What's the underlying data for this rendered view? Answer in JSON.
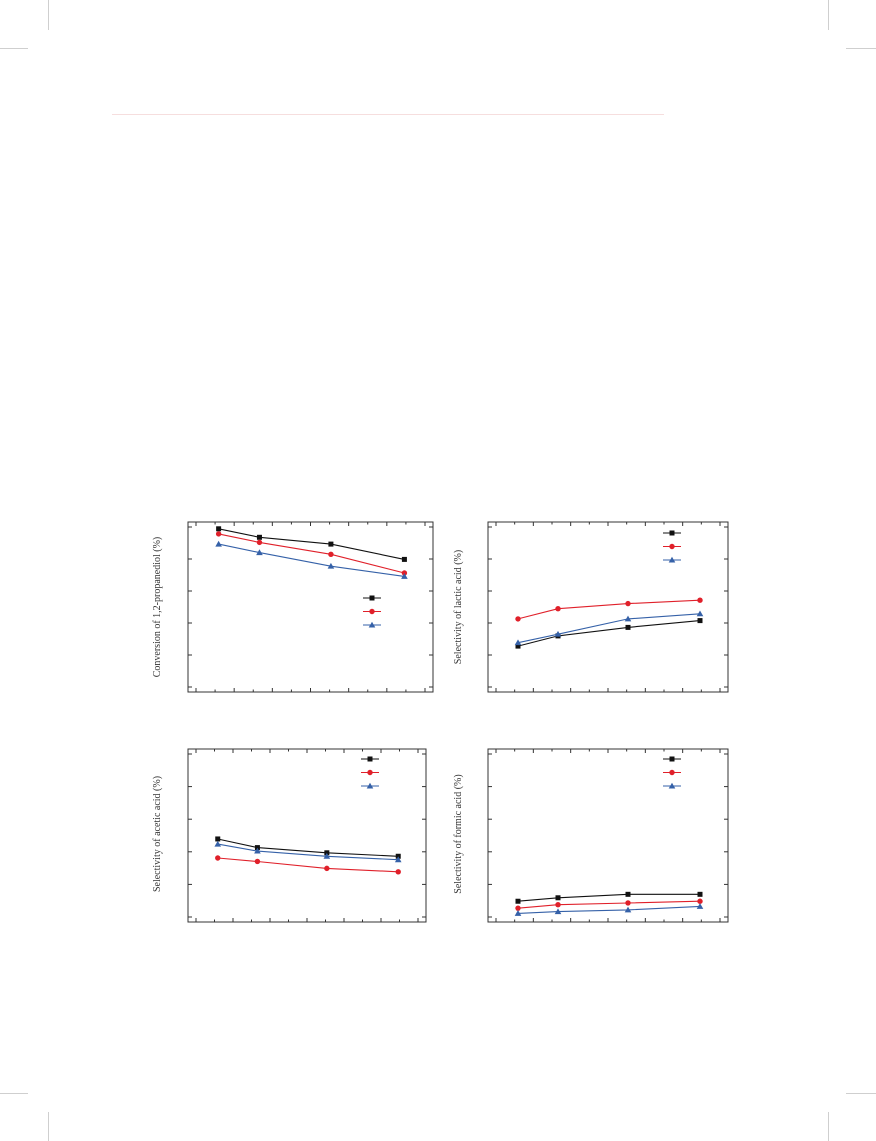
{
  "colors": {
    "frame": "#333333",
    "series_a": "#111111",
    "series_b": "#e0202a",
    "series_c": "#3561a8",
    "header_rule": "#f6dede"
  },
  "chart_data": [
    {
      "type": "line",
      "title": "",
      "xlabel": "",
      "ylabel": "Conversion of 1,2-propanediol (%)",
      "grid": false,
      "legend": "center-right",
      "xlim": [
        0,
        6
      ],
      "ylim": [
        0,
        100
      ],
      "series": [
        {
          "marker": "square",
          "color": "#111111",
          "x": [
            0.75,
            1.75,
            3.5,
            5.3
          ],
          "y": [
            96,
            91,
            87,
            78
          ]
        },
        {
          "marker": "circle",
          "color": "#e0202a",
          "x": [
            0.75,
            1.75,
            3.5,
            5.3
          ],
          "y": [
            93,
            88,
            81,
            70
          ]
        },
        {
          "marker": "triangle",
          "color": "#3561a8",
          "x": [
            0.75,
            1.75,
            3.5,
            5.3
          ],
          "y": [
            87,
            82,
            74,
            68
          ]
        }
      ]
    },
    {
      "type": "line",
      "title": "",
      "xlabel": "",
      "ylabel": "Selectivity of lactic acid (%)",
      "grid": false,
      "legend": "top-right",
      "xlim": [
        0,
        6
      ],
      "ylim": [
        0,
        100
      ],
      "series": [
        {
          "marker": "square",
          "color": "#111111",
          "x": [
            0.75,
            1.75,
            3.5,
            5.3
          ],
          "y": [
            27,
            33,
            38,
            42
          ]
        },
        {
          "marker": "circle",
          "color": "#e0202a",
          "x": [
            0.75,
            1.75,
            3.5,
            5.3
          ],
          "y": [
            43,
            49,
            52,
            54
          ]
        },
        {
          "marker": "triangle",
          "color": "#3561a8",
          "x": [
            0.75,
            1.75,
            3.5,
            5.3
          ],
          "y": [
            29,
            34,
            43,
            46
          ]
        }
      ]
    },
    {
      "type": "line",
      "title": "",
      "xlabel": "",
      "ylabel": "Selectivity of acetic acid (%)",
      "grid": false,
      "legend": "top-right",
      "xlim": [
        0,
        6
      ],
      "ylim": [
        0,
        100
      ],
      "series": [
        {
          "marker": "square",
          "color": "#111111",
          "x": [
            0.75,
            1.75,
            3.5,
            5.3
          ],
          "y": [
            48,
            43,
            40,
            38
          ]
        },
        {
          "marker": "circle",
          "color": "#e0202a",
          "x": [
            0.75,
            1.75,
            3.5,
            5.3
          ],
          "y": [
            37,
            35,
            31,
            29
          ]
        },
        {
          "marker": "triangle",
          "color": "#3561a8",
          "x": [
            0.75,
            1.75,
            3.5,
            5.3
          ],
          "y": [
            45,
            41,
            38,
            36
          ]
        }
      ]
    },
    {
      "type": "line",
      "title": "",
      "xlabel": "",
      "ylabel": "Selectivity of formic acid (%)",
      "grid": false,
      "legend": "top-right",
      "xlim": [
        0,
        6
      ],
      "ylim": [
        0,
        100
      ],
      "series": [
        {
          "marker": "square",
          "color": "#111111",
          "x": [
            0.75,
            1.75,
            3.5,
            5.3
          ],
          "y": [
            12,
            14,
            16,
            16
          ]
        },
        {
          "marker": "circle",
          "color": "#e0202a",
          "x": [
            0.75,
            1.75,
            3.5,
            5.3
          ],
          "y": [
            8,
            10,
            11,
            12
          ]
        },
        {
          "marker": "triangle",
          "color": "#3561a8",
          "x": [
            0.75,
            1.75,
            3.5,
            5.3
          ],
          "y": [
            5,
            6,
            7,
            9
          ]
        }
      ]
    }
  ]
}
